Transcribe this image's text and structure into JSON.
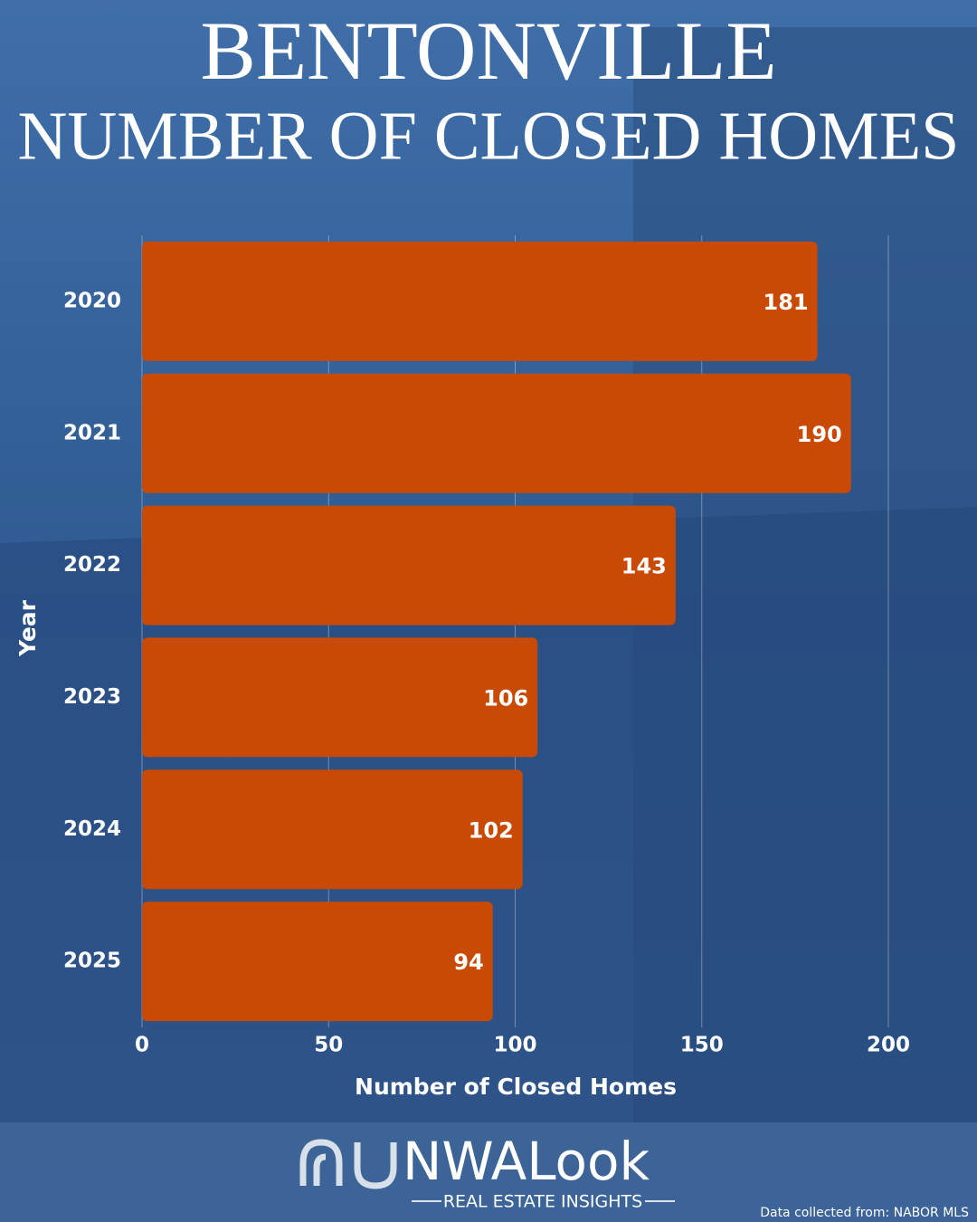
{
  "chart_data": {
    "type": "bar",
    "orientation": "horizontal",
    "title": "BENTONVILLE",
    "subtitle": "NUMBER OF CLOSED HOMES",
    "categories": [
      "2020",
      "2021",
      "2022",
      "2023",
      "2024",
      "2025"
    ],
    "values": [
      181,
      190,
      143,
      106,
      102,
      94
    ],
    "color": "#c94a04",
    "xlabel": "Number of Closed Homes",
    "ylabel": "Year",
    "xlim": [
      0,
      200
    ],
    "xticks": [
      0,
      50,
      100,
      150,
      200
    ],
    "grid": true
  },
  "logo": {
    "name": "NWALook",
    "tagline": "REAL ESTATE INSIGHTS"
  },
  "source": "Data collected from: NABOR MLS"
}
